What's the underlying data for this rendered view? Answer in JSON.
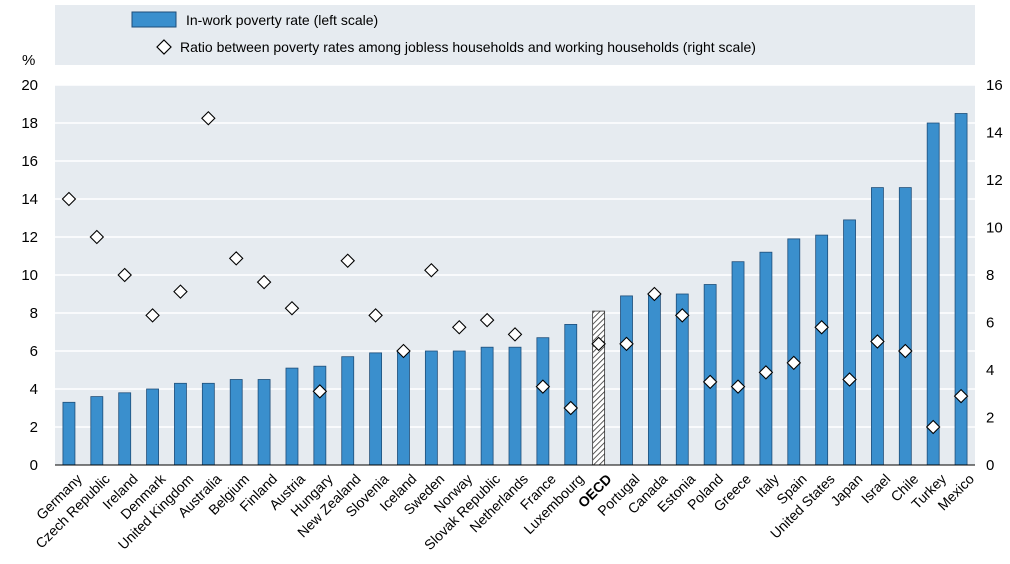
{
  "chart_data": {
    "type": "bar",
    "title": "",
    "categories": [
      "Germany",
      "Czech Republic",
      "Ireland",
      "Denmark",
      "United Kingdom",
      "Australia",
      "Belgium",
      "Finland",
      "Austria",
      "Hungary",
      "New Zealand",
      "Slovenia",
      "Iceland",
      "Sweden",
      "Norway",
      "Slovak Republic",
      "Netherlands",
      "France",
      "Luxembourg",
      "OECD",
      "Portugal",
      "Canada",
      "Estonia",
      "Poland",
      "Greece",
      "Italy",
      "Spain",
      "United States",
      "Japan",
      "Israel",
      "Chile",
      "Turkey",
      "Mexico"
    ],
    "highlight_category": "OECD",
    "series": [
      {
        "name": "In-work poverty rate (left scale)",
        "type": "bar",
        "axis": "left",
        "color": "#3a8fcd",
        "values": [
          3.3,
          3.6,
          3.8,
          4.0,
          4.3,
          4.3,
          4.5,
          4.5,
          5.1,
          5.2,
          5.7,
          5.9,
          6.0,
          6.0,
          6.0,
          6.2,
          6.2,
          6.7,
          7.4,
          8.1,
          8.9,
          9.0,
          9.0,
          9.5,
          10.7,
          11.2,
          11.9,
          12.1,
          12.9,
          14.6,
          14.6,
          18.0,
          18.5
        ]
      },
      {
        "name": "Ratio between poverty rates among jobless households and working households (right scale)",
        "type": "scatter",
        "marker": "diamond",
        "axis": "right",
        "values": [
          11.2,
          9.6,
          8.0,
          6.3,
          7.3,
          14.6,
          8.7,
          7.7,
          6.6,
          3.1,
          8.6,
          6.3,
          4.8,
          8.2,
          5.8,
          6.1,
          5.5,
          3.3,
          2.4,
          5.1,
          5.1,
          7.2,
          6.3,
          3.5,
          3.3,
          3.9,
          4.3,
          5.8,
          3.6,
          5.2,
          4.8,
          1.6,
          2.9
        ]
      }
    ],
    "y_left": {
      "label": "%",
      "ylim": [
        0,
        20
      ],
      "ticks": [
        "0",
        "2",
        "4",
        "6",
        "8",
        "10",
        "12",
        "14",
        "16",
        "18",
        "20"
      ]
    },
    "y_right": {
      "label": "",
      "ylim": [
        0,
        16
      ],
      "ticks": [
        "0",
        "2",
        "4",
        "6",
        "8",
        "10",
        "12",
        "14",
        "16"
      ]
    },
    "grid": "horizontal",
    "legend_position": "top",
    "colors": {
      "bar": "#3a8fcd",
      "bar_stroke": "#1f4e79",
      "plot_bg": "#e6ebf0",
      "legend_bg": "#e6ebf0",
      "grid": "#ffffff"
    }
  }
}
